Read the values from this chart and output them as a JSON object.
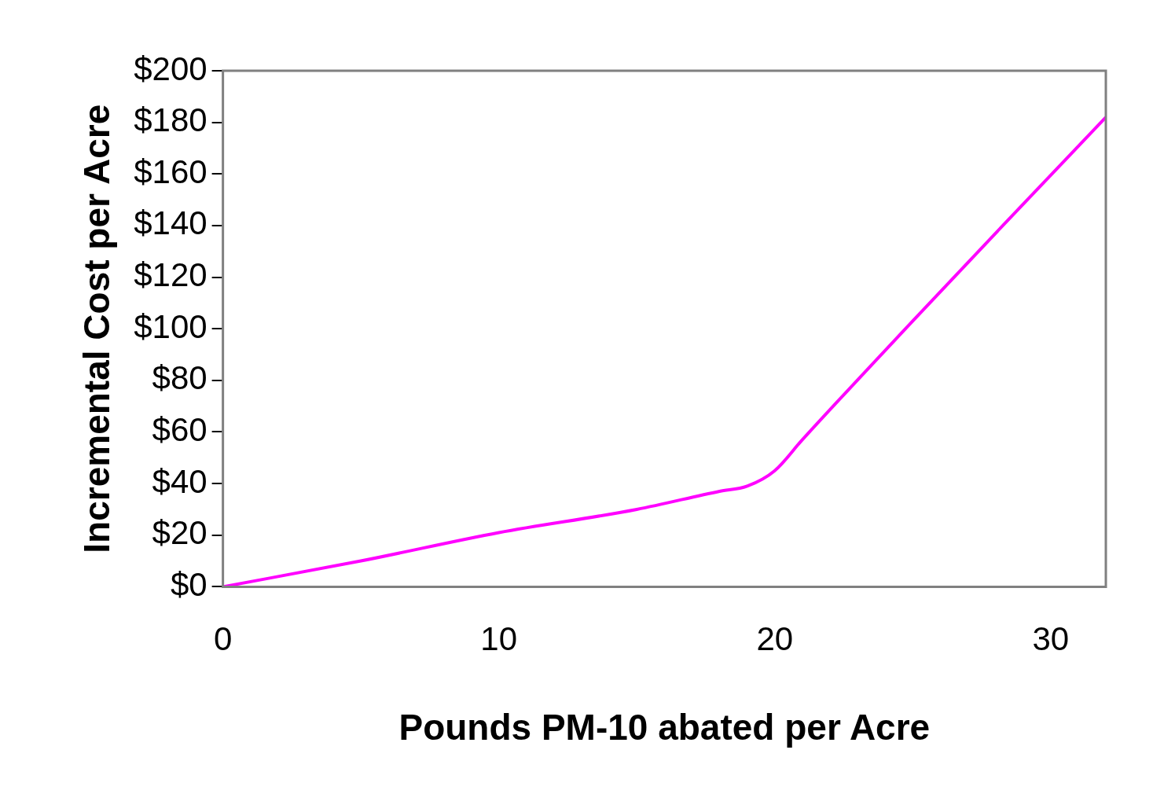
{
  "chart_data": {
    "type": "line",
    "xlabel": "Pounds PM-10 abated per Acre",
    "ylabel": "Incremental Cost per Acre",
    "x": [
      0,
      5,
      10,
      15,
      18,
      19,
      20,
      21,
      25,
      28,
      32
    ],
    "series": [
      {
        "color": "#ff00ff",
        "values": [
          0,
          10,
          21,
          30,
          37,
          39,
          45,
          57,
          103,
          137,
          182
        ]
      }
    ],
    "xlim": [
      0,
      32
    ],
    "xticks": [
      0,
      10,
      20,
      30
    ],
    "ylim": [
      0,
      200
    ],
    "yticks": [
      {
        "value": 0,
        "label": "$0"
      },
      {
        "value": 20,
        "label": "$20"
      },
      {
        "value": 40,
        "label": "$40"
      },
      {
        "value": 60,
        "label": "$60"
      },
      {
        "value": 80,
        "label": "$80"
      },
      {
        "value": 100,
        "label": "$100"
      },
      {
        "value": 120,
        "label": "$120"
      },
      {
        "value": 140,
        "label": "$140"
      },
      {
        "value": 160,
        "label": "$160"
      },
      {
        "value": 180,
        "label": "$180"
      },
      {
        "value": 200,
        "label": "$200"
      }
    ],
    "grid": false,
    "legend": false,
    "marker": "none",
    "line_style": "solid"
  }
}
